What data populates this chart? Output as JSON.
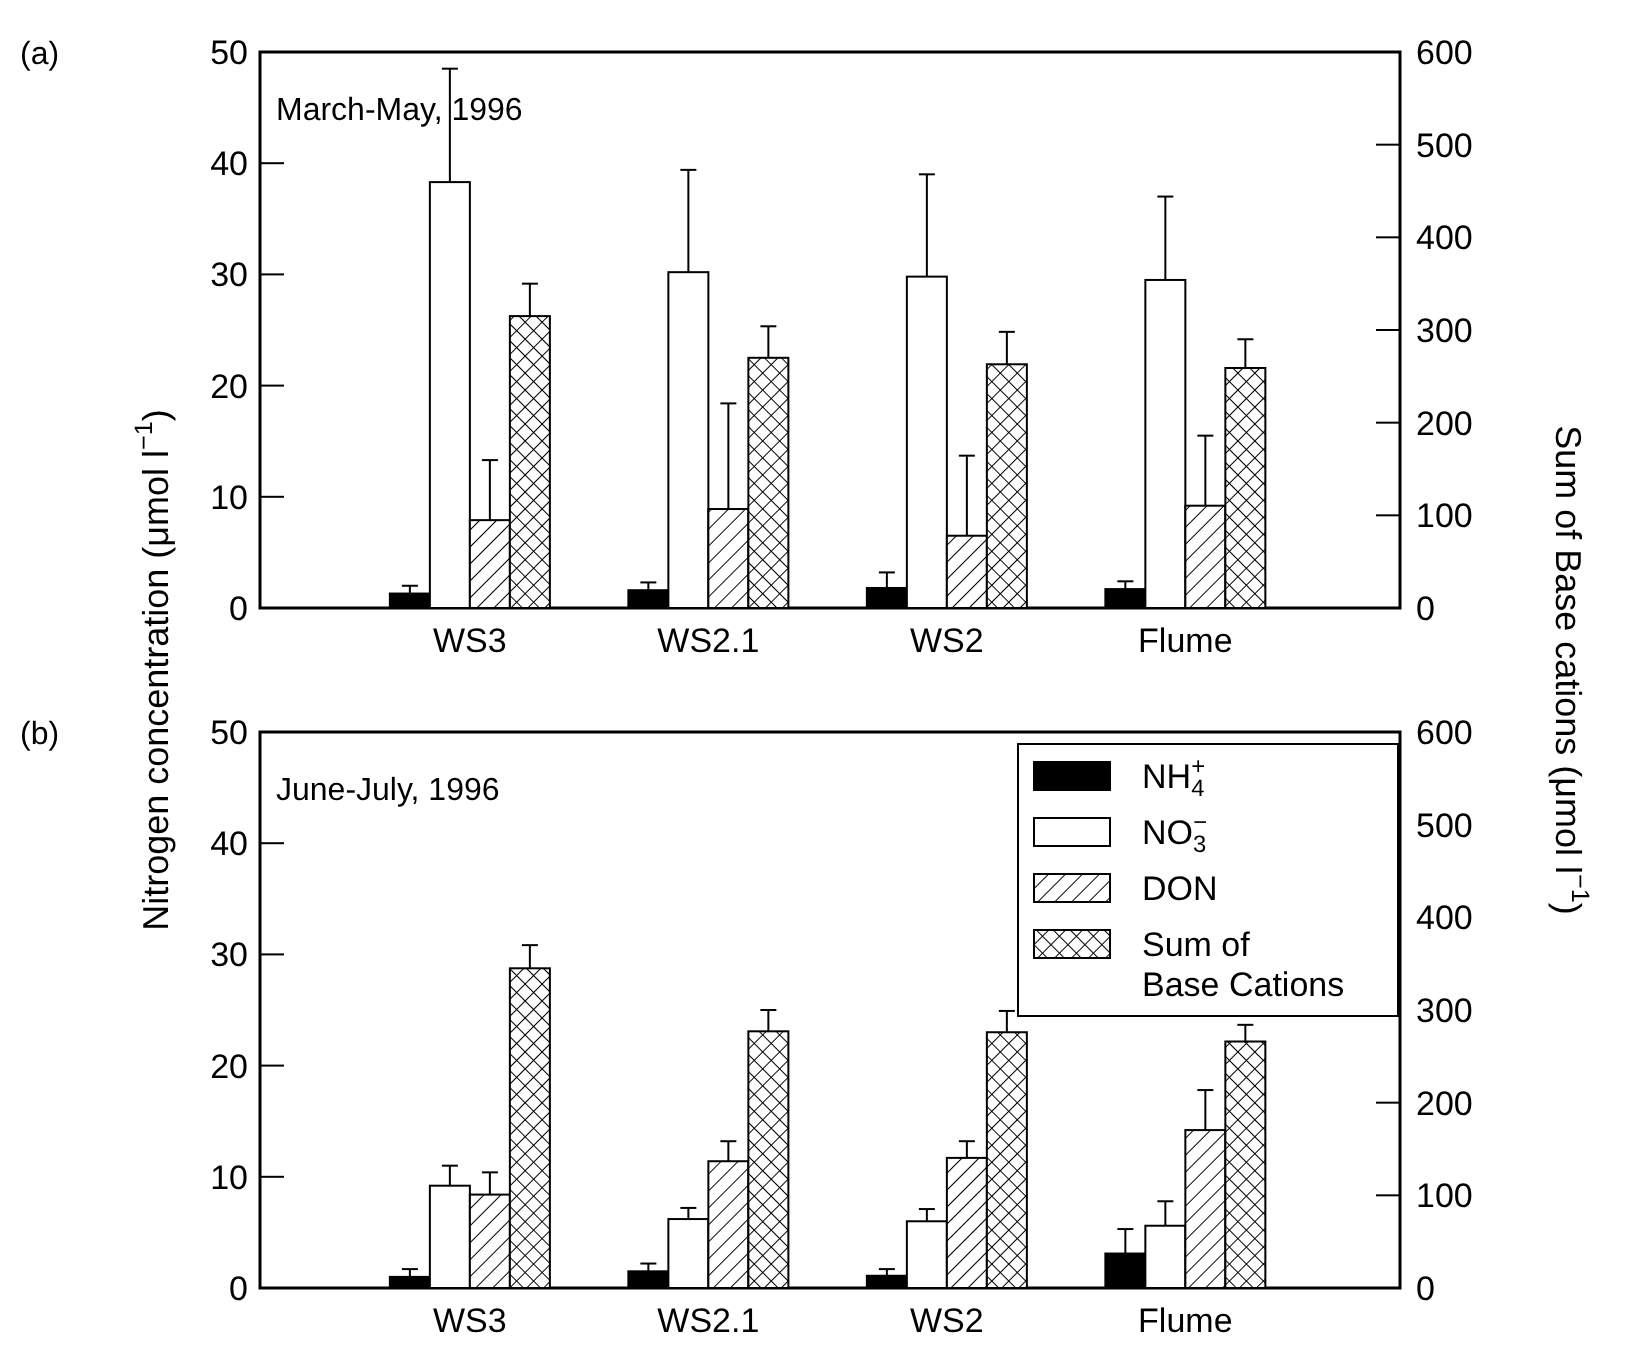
{
  "chart_data": [
    {
      "type": "bar",
      "title": "March-May, 1996",
      "ylabel": "Nitrogen concentration (μmol l$^{−1}$)",
      "y2label": "Sum of Base cations (μmol l$^{−1}$)",
      "annotations": [
        "(a)"
      ],
      "categories": [
        "WS3",
        "WS2.1",
        "WS2",
        "Flume"
      ],
      "ylim": [
        0,
        50
      ],
      "yticks": [
        0,
        10,
        20,
        30,
        40,
        50
      ],
      "y2lim": [
        0,
        600
      ],
      "y2ticks": [
        0,
        100,
        200,
        300,
        400,
        500,
        600
      ],
      "legend": false,
      "series": [
        {
          "color": "#000000",
          "values": [
            1.3,
            1.6,
            1.8,
            1.7
          ],
          "errors": [
            0.7,
            0.7,
            1.4,
            0.7
          ]
        },
        {
          "color": "#ffffff",
          "values": [
            38.3,
            30.2,
            29.8,
            29.5
          ],
          "errors": [
            10.2,
            9.2,
            9.2,
            7.5
          ]
        },
        {
          "color": "#000000",
          "values": [
            7.9,
            8.9,
            6.5,
            9.2
          ],
          "errors": [
            5.4,
            9.5,
            7.2,
            6.3
          ]
        },
        {
          "color": "#000000",
          "axis": "y2",
          "values": [
            315,
            270,
            263,
            259
          ],
          "errors": [
            35,
            34,
            35,
            31
          ]
        }
      ]
    },
    {
      "type": "bar",
      "title": "June-July, 1996",
      "annotations": [
        "(b)"
      ],
      "categories": [
        "WS3",
        "WS2.1",
        "WS2",
        "Flume"
      ],
      "ylim": [
        0,
        50
      ],
      "yticks": [
        0,
        10,
        20,
        30,
        40,
        50
      ],
      "y2lim": [
        0,
        600
      ],
      "y2ticks": [
        0,
        100,
        200,
        300,
        400,
        500,
        600
      ],
      "legend": "top right",
      "series": [
        {
          "name": "NH$_{4}$$^{+}$",
          "color": "#000000",
          "values": [
            1.0,
            1.5,
            1.1,
            3.1
          ],
          "errors": [
            0.7,
            0.7,
            0.6,
            2.2
          ]
        },
        {
          "name": "NO$_{3}$$^{−}$",
          "color": "#ffffff",
          "values": [
            9.2,
            6.2,
            6.0,
            5.6
          ],
          "errors": [
            1.8,
            1.0,
            1.1,
            2.2
          ]
        },
        {
          "name": "DON",
          "color": "#000000",
          "values": [
            8.4,
            11.4,
            11.7,
            14.2
          ],
          "errors": [
            2.0,
            1.8,
            1.5,
            3.6
          ]
        },
        {
          "name": "Sum of Base Cations",
          "color": "#000000",
          "axis": "y2",
          "values": [
            345,
            277,
            276,
            266
          ],
          "errors": [
            25,
            23,
            23,
            18
          ]
        }
      ]
    }
  ]
}
